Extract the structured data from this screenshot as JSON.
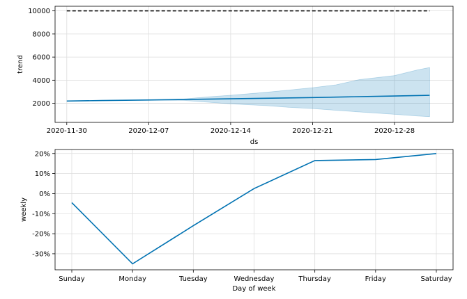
{
  "chart_data": [
    {
      "type": "line",
      "xlabel": "ds",
      "ylabel": "trend",
      "x_ticks": [
        "2020-11-30",
        "2020-12-07",
        "2020-12-14",
        "2020-12-21",
        "2020-12-28"
      ],
      "y_ticks": [
        2000,
        4000,
        6000,
        8000,
        10000
      ],
      "xlim": [
        "2020-11-29",
        "2021-01-02"
      ],
      "ylim": [
        350,
        10400
      ],
      "grid": true,
      "colors": {
        "trend": "#0072B2",
        "band": "#0072B2",
        "cap": "#000000"
      },
      "cap": {
        "value": 10000,
        "style": "dashed",
        "x": [
          "2020-11-30",
          "2020-12-31"
        ]
      },
      "series": [
        {
          "x": [
            "2020-11-30",
            "2020-12-03",
            "2020-12-07",
            "2020-12-10",
            "2020-12-14",
            "2020-12-17",
            "2020-12-21",
            "2020-12-24",
            "2020-12-28",
            "2020-12-31"
          ],
          "values": [
            2200,
            2240,
            2290,
            2330,
            2390,
            2440,
            2500,
            2560,
            2630,
            2690
          ]
        }
      ],
      "band": {
        "x": [
          "2020-11-30",
          "2020-12-03",
          "2020-12-07",
          "2020-12-10",
          "2020-12-12",
          "2020-12-14",
          "2020-12-17",
          "2020-12-19",
          "2020-12-21",
          "2020-12-23",
          "2020-12-25",
          "2020-12-28",
          "2020-12-30",
          "2020-12-31"
        ],
        "upper": [
          2200,
          2240,
          2300,
          2370,
          2550,
          2700,
          2950,
          3150,
          3350,
          3600,
          4050,
          4400,
          4900,
          5100
        ],
        "lower": [
          2200,
          2240,
          2280,
          2250,
          2100,
          1950,
          1800,
          1650,
          1550,
          1400,
          1250,
          1050,
          900,
          850
        ]
      }
    },
    {
      "type": "line",
      "xlabel": "Day of week",
      "ylabel": "weekly",
      "categories": [
        "Sunday",
        "Monday",
        "Tuesday",
        "Wednesday",
        "Thursday",
        "Friday",
        "Saturday"
      ],
      "y_ticks": [
        "-30%",
        "-20%",
        "-10%",
        "0%",
        "10%",
        "20%"
      ],
      "y_tick_values": [
        -30,
        -20,
        -10,
        0,
        10,
        20
      ],
      "ylim": [
        -38,
        22
      ],
      "grid": true,
      "colors": {
        "line": "#0072B2"
      },
      "series": [
        {
          "values": [
            -4.5,
            -35,
            -16,
            2.5,
            16.5,
            17,
            20
          ]
        }
      ]
    }
  ]
}
